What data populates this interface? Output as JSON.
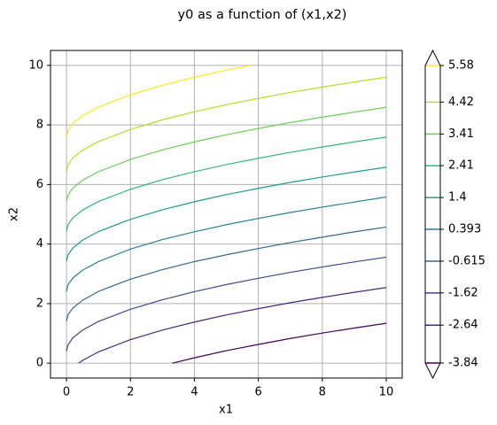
{
  "chart_data": {
    "type": "contour",
    "title": "y0 as a function of (x1,x2)",
    "x_label": "x1",
    "y_label": "x2",
    "xlim": [
      -0.5,
      10.5
    ],
    "ylim": [
      -0.5,
      10.5
    ],
    "xticks": [
      0,
      2,
      4,
      6,
      8,
      10
    ],
    "yticks": [
      0,
      2,
      4,
      6,
      8,
      10
    ],
    "grid": true,
    "levels": [
      -3.84,
      -2.64,
      -1.62,
      -0.615,
      0.393,
      1.4,
      2.41,
      3.41,
      4.42,
      5.58
    ],
    "series": [
      {
        "color": "#440154",
        "x": [
          3.31,
          4,
          5,
          6,
          7,
          8,
          9,
          10
        ],
        "values": [
          0,
          0.18,
          0.42,
          0.63,
          0.83,
          1.01,
          1.18,
          1.34
        ]
      },
      {
        "color": "#482878",
        "x": [
          0.38,
          0.5,
          1,
          2,
          3,
          4,
          5,
          6,
          7,
          8,
          9,
          10
        ],
        "values": [
          0,
          0.09,
          0.38,
          0.79,
          1.11,
          1.38,
          1.62,
          1.83,
          2.03,
          2.21,
          2.38,
          2.54
        ]
      },
      {
        "color": "#3e4989",
        "x": [
          0,
          0.05,
          0.2,
          0.5,
          1,
          2,
          3,
          4,
          5,
          6,
          7,
          8,
          9,
          10
        ],
        "values": [
          0.4,
          0.62,
          0.85,
          1.11,
          1.4,
          1.81,
          2.13,
          2.4,
          2.64,
          2.85,
          3.05,
          3.23,
          3.4,
          3.56
        ]
      },
      {
        "color": "#31688e",
        "x": [
          0,
          0.05,
          0.2,
          0.5,
          1,
          2,
          3,
          4,
          5,
          6,
          7,
          8,
          9,
          10
        ],
        "values": [
          1.41,
          1.63,
          1.85,
          2.11,
          2.41,
          2.82,
          3.14,
          3.41,
          3.64,
          3.85,
          4.05,
          4.23,
          4.41,
          4.57
        ]
      },
      {
        "color": "#26828e",
        "x": [
          0,
          0.05,
          0.2,
          0.5,
          1,
          2,
          3,
          4,
          5,
          6,
          7,
          8,
          9,
          10
        ],
        "values": [
          2.41,
          2.64,
          2.86,
          3.12,
          3.41,
          3.83,
          4.15,
          4.41,
          4.65,
          4.86,
          5.06,
          5.24,
          5.41,
          5.58
        ]
      },
      {
        "color": "#1f9e89",
        "x": [
          0,
          0.05,
          0.2,
          0.5,
          1,
          2,
          3,
          4,
          5,
          6,
          7,
          8,
          9,
          10
        ],
        "values": [
          3.42,
          3.64,
          3.87,
          4.13,
          4.42,
          4.83,
          5.15,
          5.42,
          5.66,
          5.87,
          6.07,
          6.25,
          6.42,
          6.58
        ]
      },
      {
        "color": "#35b779",
        "x": [
          0,
          0.05,
          0.2,
          0.5,
          1,
          2,
          3,
          4,
          5,
          6,
          7,
          8,
          9,
          10
        ],
        "values": [
          4.43,
          4.65,
          4.88,
          5.14,
          5.43,
          5.84,
          6.16,
          6.43,
          6.67,
          6.88,
          7.08,
          7.26,
          7.43,
          7.59
        ]
      },
      {
        "color": "#6ece58",
        "x": [
          0,
          0.05,
          0.2,
          0.5,
          1,
          2,
          3,
          4,
          5,
          6,
          7,
          8,
          9,
          10
        ],
        "values": [
          5.43,
          5.65,
          5.88,
          6.14,
          6.43,
          6.84,
          7.16,
          7.43,
          7.67,
          7.88,
          8.08,
          8.26,
          8.43,
          8.59
        ]
      },
      {
        "color": "#b5de2b",
        "x": [
          0,
          0.05,
          0.2,
          0.5,
          1,
          2,
          3,
          4,
          5,
          6,
          7,
          8,
          9,
          10
        ],
        "values": [
          6.44,
          6.66,
          6.89,
          7.15,
          7.44,
          7.85,
          8.17,
          8.44,
          8.68,
          8.89,
          9.09,
          9.27,
          9.44,
          9.6
        ]
      },
      {
        "color": "#fde725",
        "x": [
          0,
          0.05,
          0.2,
          0.5,
          1,
          2,
          3,
          4,
          5,
          5.76
        ],
        "values": [
          7.6,
          7.82,
          8.05,
          8.31,
          8.6,
          9.01,
          9.33,
          9.6,
          9.84,
          10
        ]
      }
    ]
  }
}
